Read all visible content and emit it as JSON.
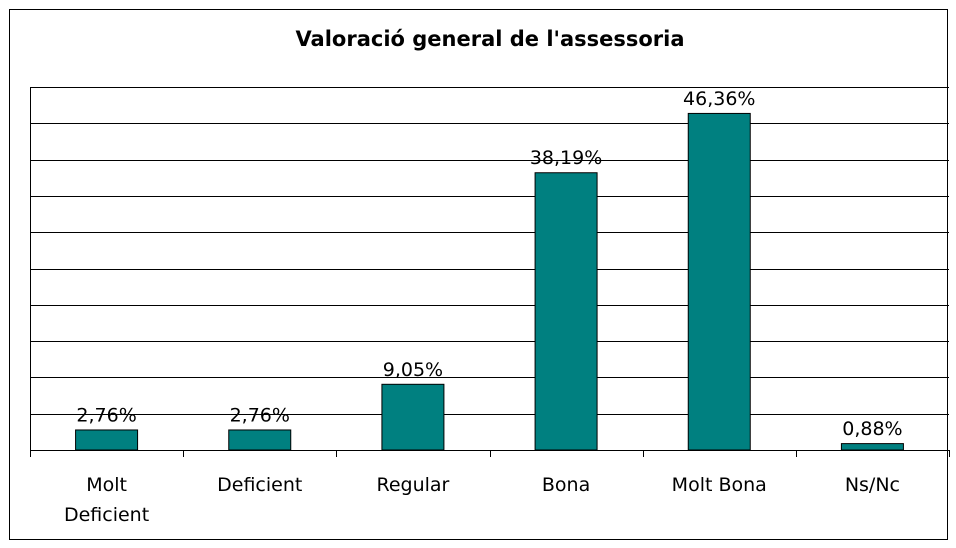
{
  "chart_data": {
    "type": "bar",
    "title": "Valoració general de l'assessoria",
    "categories": [
      "Molt Deficient",
      "Deficient",
      "Regular",
      "Bona",
      "Molt Bona",
      "Ns/Nc"
    ],
    "values": [
      2.76,
      2.76,
      9.05,
      38.19,
      46.36,
      0.88
    ],
    "value_labels": [
      "2,76%",
      "2,76%",
      "9,05%",
      "38,19%",
      "46,36%",
      "0,88%"
    ],
    "color": "#008080",
    "ylim": [
      0,
      50
    ],
    "yticks": [
      0,
      5,
      10,
      15,
      20,
      25,
      30,
      35,
      40,
      45,
      50
    ],
    "grid": true
  }
}
